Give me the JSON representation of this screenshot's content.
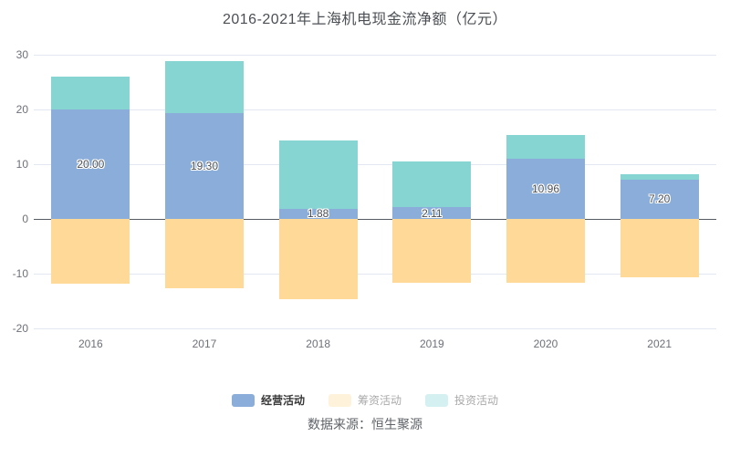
{
  "title": "2016-2021年上海机电现金流净额（亿元）",
  "source": "数据来源：恒生聚源",
  "legend": [
    {
      "label": "经营活动",
      "color": "#8aadd9",
      "emphasized": true
    },
    {
      "label": "筹资活动",
      "color": "#fed998",
      "emphasized": false
    },
    {
      "label": "投资活动",
      "color": "#87d5d3",
      "emphasized": false
    }
  ],
  "chart_data": {
    "type": "bar",
    "stacked": true,
    "title": "2016-2021年上海机电现金流净额（亿元）",
    "categories": [
      "2016",
      "2017",
      "2018",
      "2019",
      "2020",
      "2021"
    ],
    "series": [
      {
        "name": "经营活动",
        "color": "#8aadd9",
        "values": [
          20.0,
          19.3,
          1.88,
          2.11,
          10.96,
          7.2
        ],
        "labels": [
          "20.00",
          "19.30",
          "1.88",
          "2.11",
          "10.96",
          "7.20"
        ]
      },
      {
        "name": "筹资活动",
        "color": "#fed998",
        "values": [
          -11.8,
          -12.6,
          -14.6,
          -11.6,
          -11.6,
          -10.7
        ]
      },
      {
        "name": "投资活动",
        "color": "#87d5d3",
        "values": [
          6.0,
          9.6,
          12.5,
          8.4,
          4.3,
          1.0
        ]
      }
    ],
    "xlabel": "",
    "ylabel": "",
    "ylim": [
      -20,
      30
    ],
    "yticks": [
      30,
      20,
      10,
      0,
      -10,
      -20
    ],
    "grid": true,
    "zero_line_color": "#565a63",
    "grid_color": "#e2e7f2",
    "legend_position": "bottom",
    "value_labels_on_series": "经营活动"
  }
}
